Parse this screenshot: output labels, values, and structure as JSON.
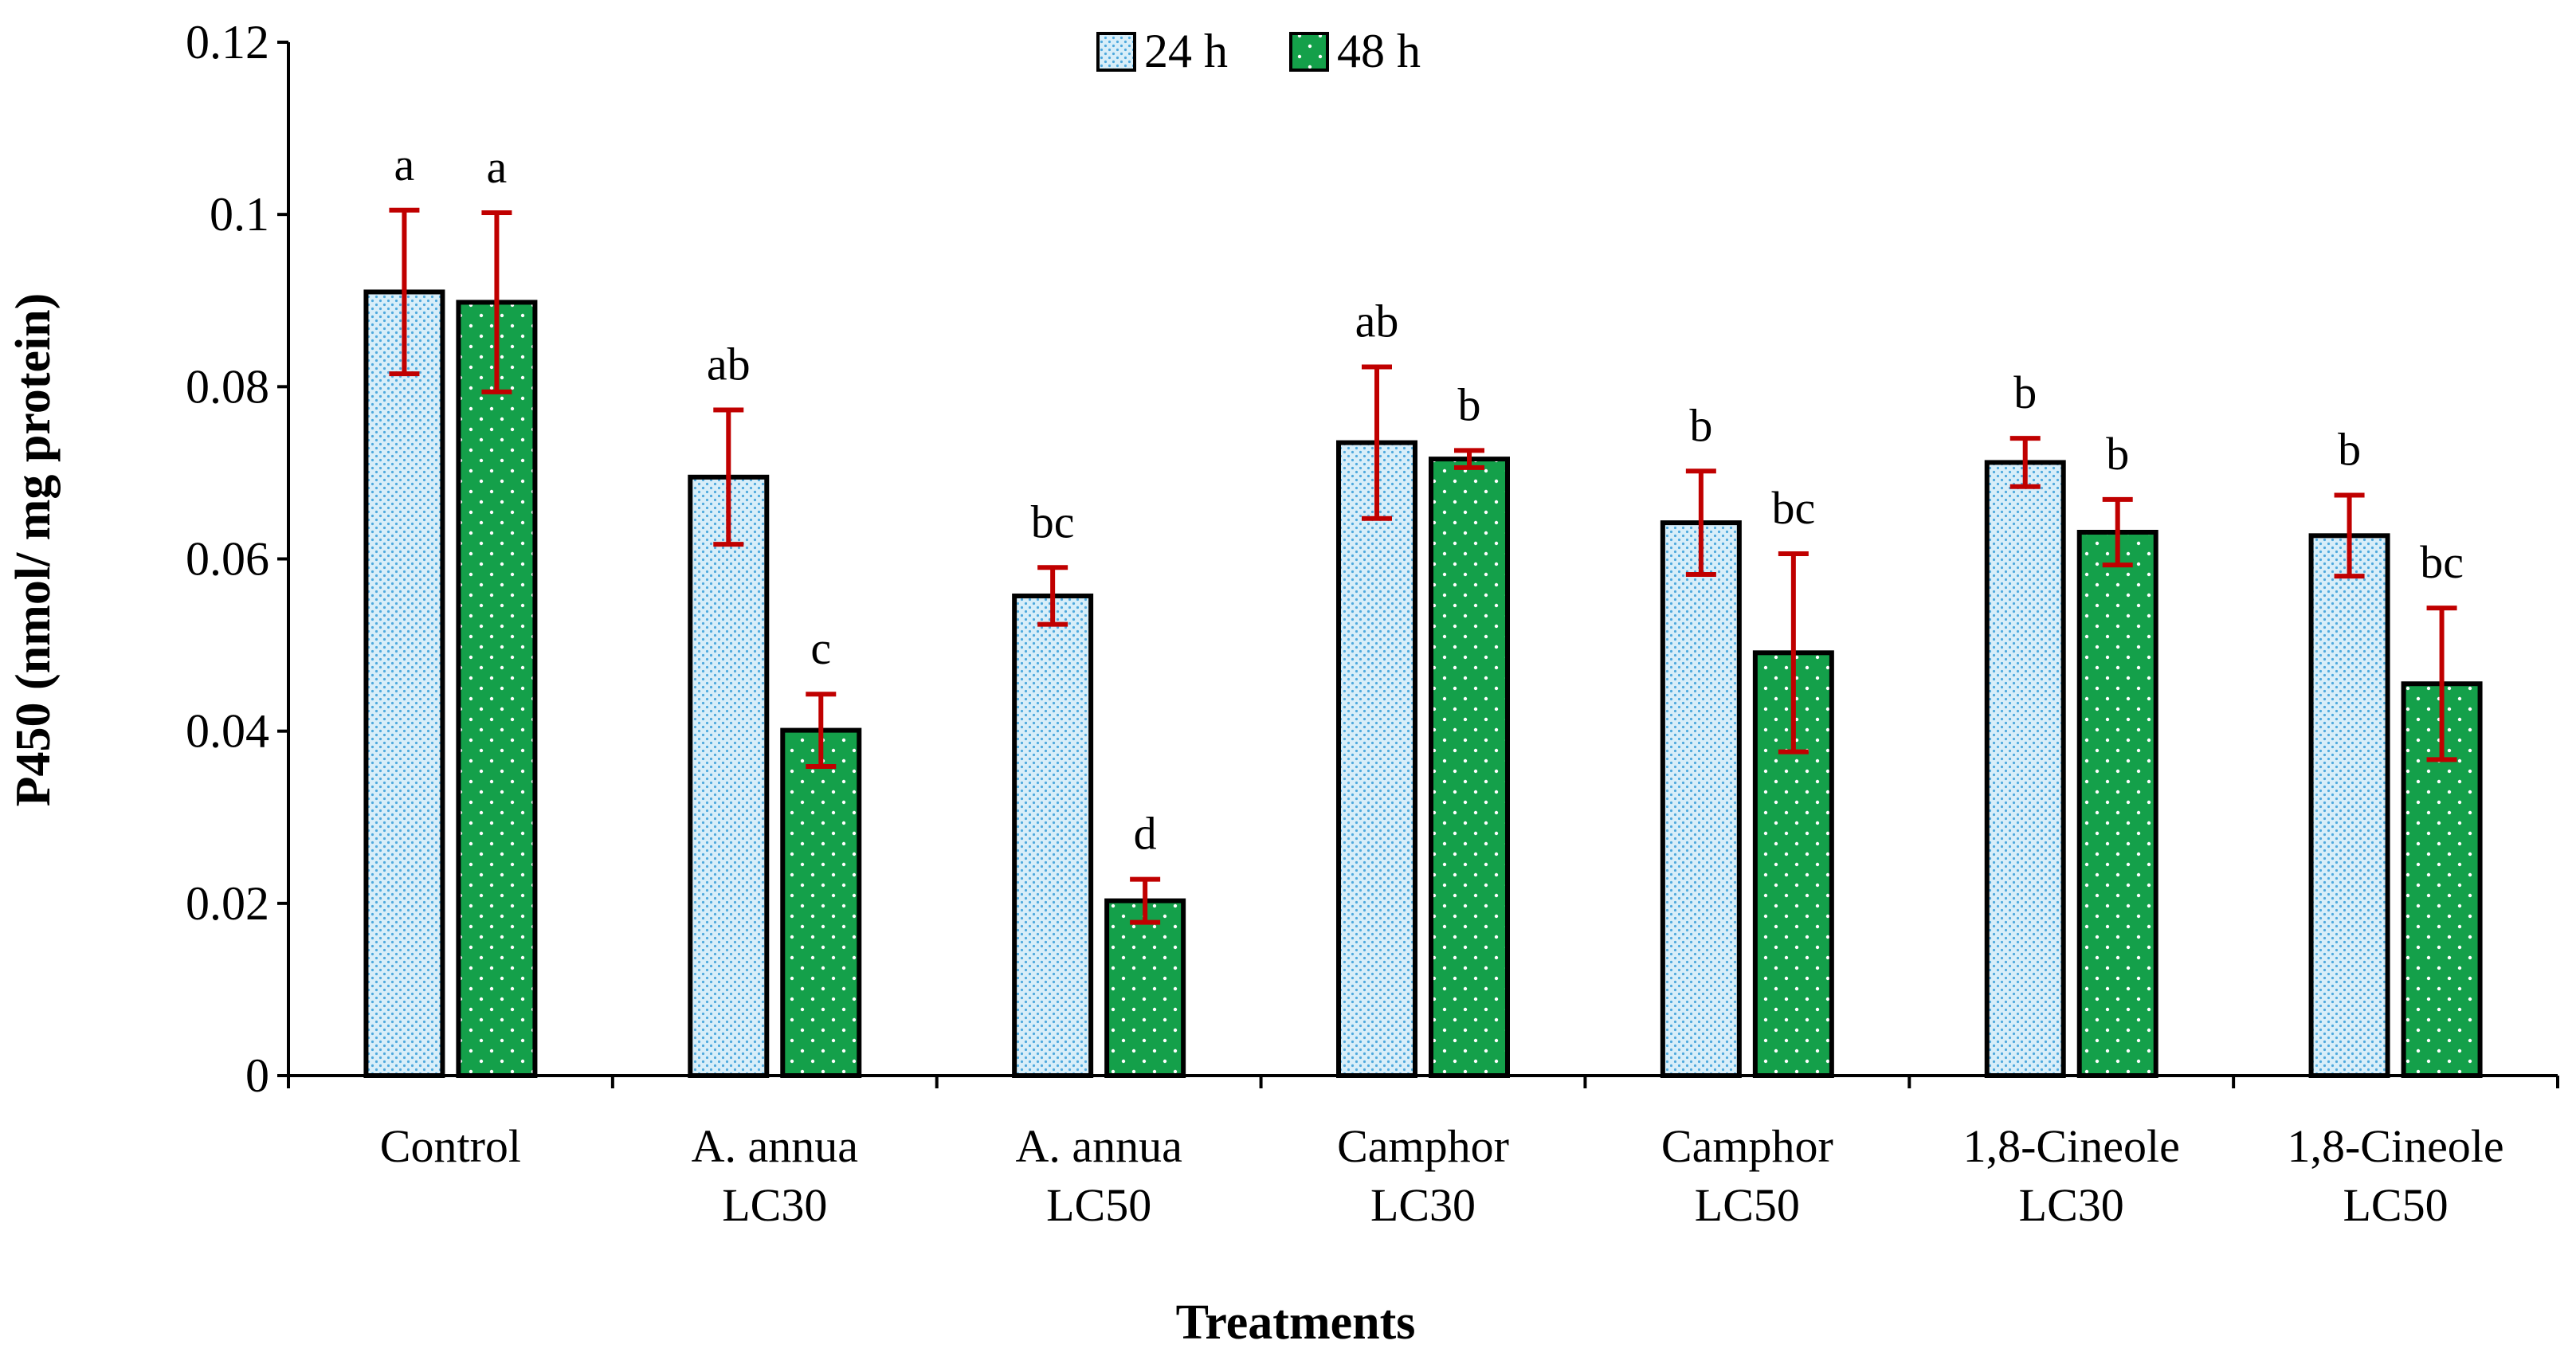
{
  "chart_data": {
    "type": "bar",
    "title": "",
    "xlabel": "Treatments",
    "ylabel": "P450 (nmol/ mg protein)",
    "ylim": [
      0,
      0.12
    ],
    "yticks": [
      "0",
      "0.02",
      "0.04",
      "0.06",
      "0.08",
      "0.1",
      "0.12"
    ],
    "ytick_values": [
      0,
      0.02,
      0.04,
      0.06,
      0.08,
      0.1,
      0.12
    ],
    "legend_position": "top-center",
    "categories": [
      [
        "Control"
      ],
      [
        "A. annua",
        "LC30"
      ],
      [
        "A. annua",
        "LC50"
      ],
      [
        "Camphor",
        "LC30"
      ],
      [
        "Camphor",
        "LC50"
      ],
      [
        "1,8-Cineole",
        "LC30"
      ],
      [
        "1,8-Cineole",
        "LC50"
      ]
    ],
    "series": [
      {
        "name": "24 h",
        "color": "#cfe8f7",
        "dot_color": "#5aaee0",
        "values": [
          0.091,
          0.0695,
          0.0557,
          0.0735,
          0.0642,
          0.0712,
          0.0627
        ],
        "errors": [
          0.0095,
          0.0078,
          0.0033,
          0.0088,
          0.006,
          0.0028,
          0.0047
        ],
        "letters": [
          "a",
          "ab",
          "bc",
          "ab",
          "b",
          "b",
          "b"
        ]
      },
      {
        "name": "48 h",
        "color": "#18a04a",
        "dot_color": "#ffffff",
        "values": [
          0.0898,
          0.0401,
          0.0203,
          0.0716,
          0.0491,
          0.0631,
          0.0455
        ],
        "errors": [
          0.0104,
          0.0042,
          0.0025,
          0.001,
          0.0115,
          0.0038,
          0.0088
        ],
        "letters": [
          "a",
          "c",
          "d",
          "b",
          "bc",
          "b",
          "bc"
        ]
      }
    ]
  }
}
